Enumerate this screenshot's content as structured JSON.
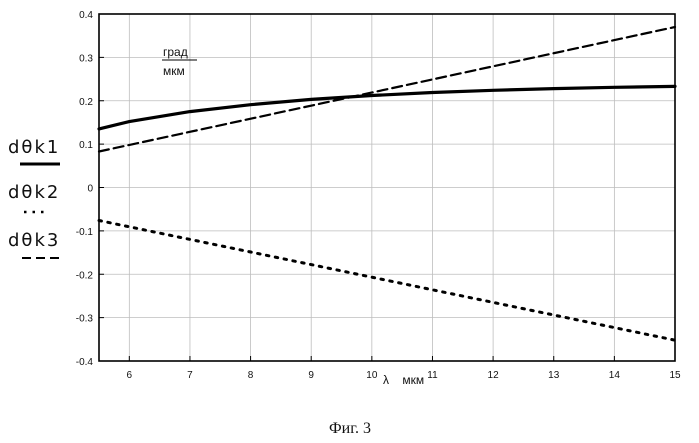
{
  "chart_data": {
    "type": "line",
    "xlim": [
      5.5,
      15
    ],
    "ylim": [
      -0.4,
      0.4
    ],
    "x_ticks": [
      6,
      7,
      8,
      9,
      10,
      11,
      12,
      13,
      14,
      15
    ],
    "x_tick_labels": [
      "6",
      "7",
      "8",
      "9",
      "10",
      "11",
      "12",
      "13",
      "14",
      "15"
    ],
    "y_ticks": [
      0.4,
      0.3,
      0.2,
      0.1,
      0,
      -0.1,
      -0.2,
      -0.3,
      -0.4
    ],
    "y_tick_labels": [
      "0.4",
      "0.3",
      "0.2",
      "0.1",
      "0",
      "-0.1",
      "-0.2",
      "-0.3",
      "-0.4"
    ],
    "grid": true,
    "unit_label": {
      "top": "град",
      "bottom": "мкм"
    },
    "xlabel": "λ    мкм",
    "series": [
      {
        "name": "dθk1",
        "style": "solid",
        "x": [
          5.5,
          6,
          7,
          8,
          9,
          10,
          11,
          12,
          13,
          14,
          15
        ],
        "y": [
          0.135,
          0.152,
          0.175,
          0.191,
          0.203,
          0.212,
          0.219,
          0.224,
          0.228,
          0.231,
          0.233
        ]
      },
      {
        "name": "dθk2",
        "style": "dotted",
        "x": [
          5.5,
          15
        ],
        "y": [
          -0.076,
          -0.352
        ]
      },
      {
        "name": "dθk3",
        "style": "dashed",
        "x": [
          5.5,
          15
        ],
        "y": [
          0.083,
          0.37
        ]
      }
    ],
    "caption": "Фиг. 3"
  }
}
